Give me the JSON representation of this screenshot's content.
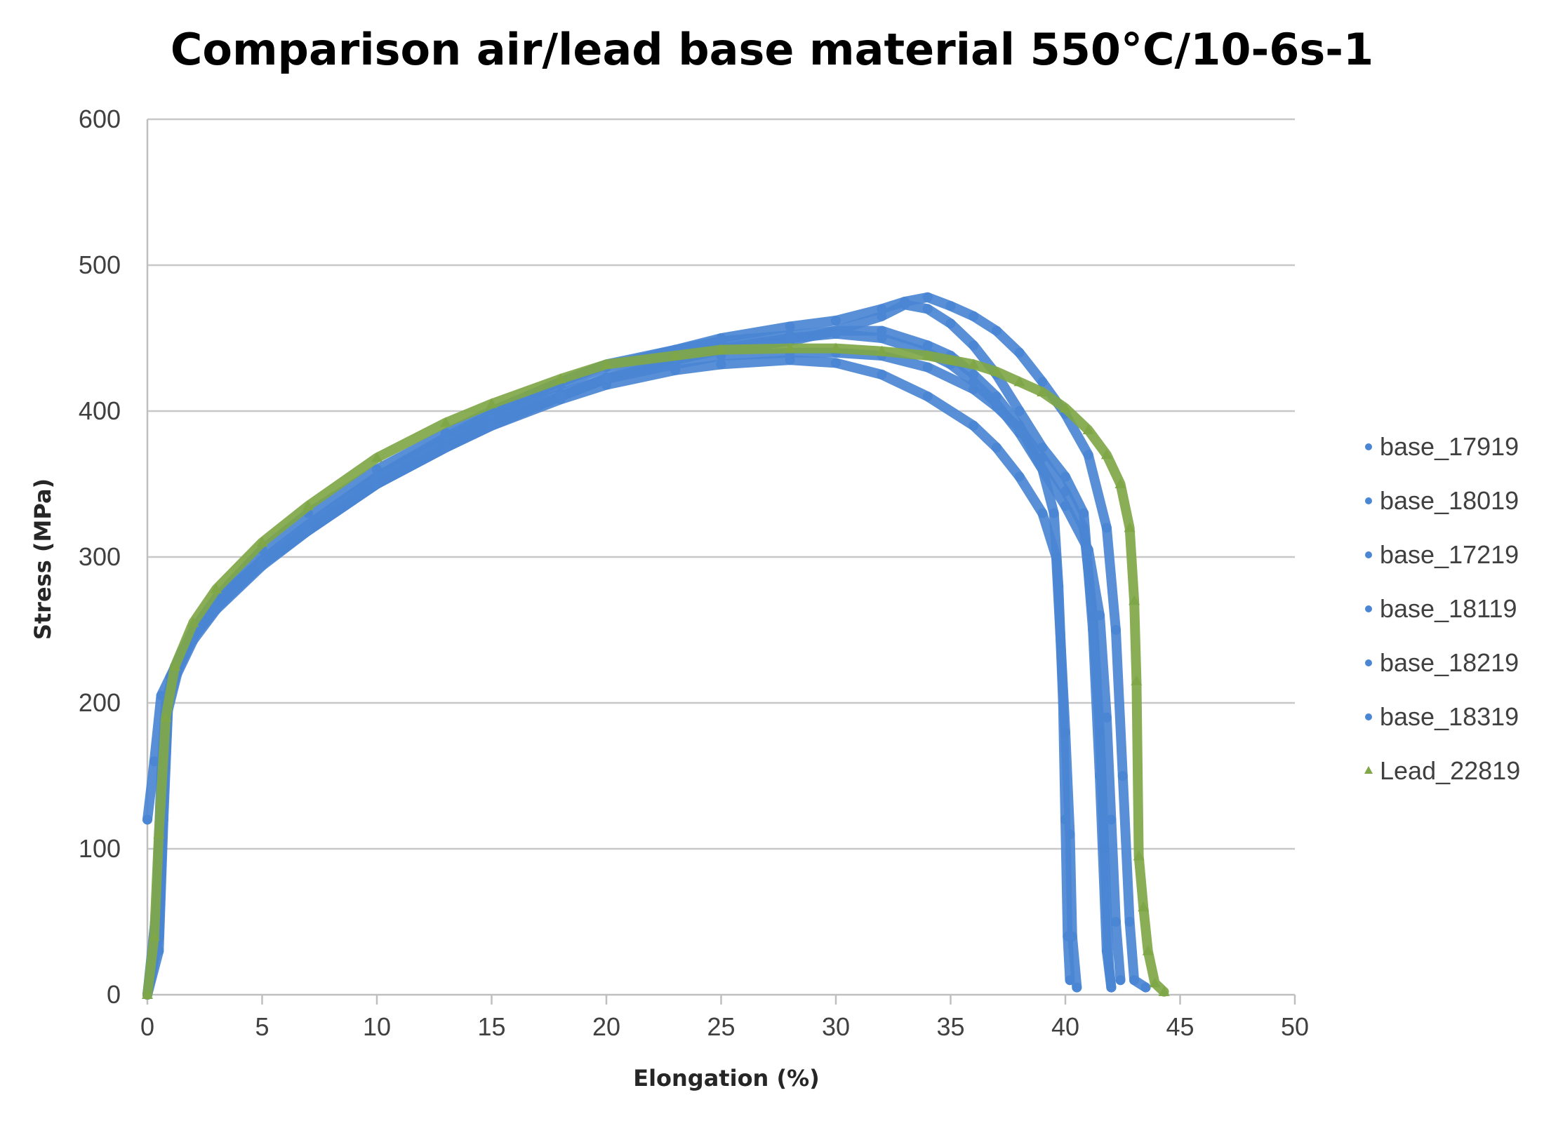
{
  "chart_data": {
    "type": "scatter",
    "title": "Comparison air/lead base material 550°C/10-6s-1",
    "xlabel": "Elongation (%)",
    "ylabel": "Stress (MPa)",
    "xlim": [
      0,
      50
    ],
    "ylim": [
      0,
      600
    ],
    "x_ticks": [
      0,
      5,
      10,
      15,
      20,
      25,
      30,
      35,
      40,
      45,
      50
    ],
    "y_ticks": [
      0,
      100,
      200,
      300,
      400,
      500,
      600
    ],
    "grid": true,
    "legend_position": "right",
    "series": [
      {
        "name": "base_17919",
        "color": "#4a86d4",
        "marker": "circle",
        "points": [
          [
            0,
            0
          ],
          [
            0.4,
            60
          ],
          [
            0.6,
            150
          ],
          [
            0.8,
            200
          ],
          [
            1.2,
            225
          ],
          [
            2,
            248
          ],
          [
            3,
            268
          ],
          [
            4,
            283
          ],
          [
            5,
            296
          ],
          [
            7,
            318
          ],
          [
            10,
            350
          ],
          [
            13,
            375
          ],
          [
            15,
            390
          ],
          [
            18,
            408
          ],
          [
            20,
            418
          ],
          [
            23,
            428
          ],
          [
            25,
            432
          ],
          [
            28,
            435
          ],
          [
            30,
            433
          ],
          [
            32,
            425
          ],
          [
            34,
            410
          ],
          [
            36,
            390
          ],
          [
            37,
            375
          ],
          [
            38,
            355
          ],
          [
            39,
            330
          ],
          [
            39.6,
            300
          ],
          [
            39.8,
            240
          ],
          [
            40,
            180
          ],
          [
            40.2,
            110
          ],
          [
            40.3,
            40
          ],
          [
            40.5,
            5
          ]
        ]
      },
      {
        "name": "base_18019",
        "color": "#4a86d4",
        "marker": "circle",
        "points": [
          [
            0,
            0
          ],
          [
            0.4,
            50
          ],
          [
            0.6,
            130
          ],
          [
            0.8,
            190
          ],
          [
            1.2,
            222
          ],
          [
            2,
            250
          ],
          [
            3,
            270
          ],
          [
            5,
            298
          ],
          [
            7,
            322
          ],
          [
            10,
            355
          ],
          [
            13,
            380
          ],
          [
            15,
            395
          ],
          [
            18,
            412
          ],
          [
            20,
            422
          ],
          [
            23,
            432
          ],
          [
            25,
            438
          ],
          [
            28,
            440
          ],
          [
            30,
            440
          ],
          [
            32,
            438
          ],
          [
            34,
            430
          ],
          [
            36,
            415
          ],
          [
            37,
            403
          ],
          [
            38,
            388
          ],
          [
            39,
            368
          ],
          [
            40,
            345
          ],
          [
            40.8,
            320
          ],
          [
            41.2,
            260
          ],
          [
            41.5,
            180
          ],
          [
            41.7,
            100
          ],
          [
            41.9,
            20
          ],
          [
            42,
            5
          ]
        ]
      },
      {
        "name": "base_17219",
        "color": "#4a86d4",
        "marker": "circle",
        "points": [
          [
            0,
            120
          ],
          [
            0.3,
            160
          ],
          [
            0.6,
            205
          ],
          [
            1,
            218
          ],
          [
            1.5,
            235
          ],
          [
            2,
            250
          ],
          [
            3,
            272
          ],
          [
            5,
            305
          ],
          [
            7,
            330
          ],
          [
            10,
            360
          ],
          [
            13,
            385
          ],
          [
            15,
            400
          ],
          [
            18,
            420
          ],
          [
            20,
            432
          ],
          [
            23,
            442
          ],
          [
            25,
            448
          ],
          [
            28,
            452
          ],
          [
            30,
            455
          ],
          [
            32,
            455
          ],
          [
            34,
            445
          ],
          [
            35,
            438
          ],
          [
            36,
            425
          ],
          [
            37,
            410
          ],
          [
            38,
            390
          ],
          [
            39,
            360
          ],
          [
            39.5,
            330
          ],
          [
            39.7,
            280
          ],
          [
            39.9,
            200
          ],
          [
            40,
            120
          ],
          [
            40.1,
            40
          ],
          [
            40.2,
            10
          ]
        ]
      },
      {
        "name": "base_18119",
        "color": "#4a86d4",
        "marker": "circle",
        "points": [
          [
            0,
            0
          ],
          [
            0.5,
            40
          ],
          [
            0.7,
            130
          ],
          [
            0.9,
            200
          ],
          [
            1.3,
            225
          ],
          [
            2,
            245
          ],
          [
            3,
            265
          ],
          [
            5,
            295
          ],
          [
            7,
            318
          ],
          [
            10,
            350
          ],
          [
            13,
            375
          ],
          [
            15,
            392
          ],
          [
            18,
            410
          ],
          [
            20,
            422
          ],
          [
            23,
            435
          ],
          [
            25,
            442
          ],
          [
            28,
            448
          ],
          [
            30,
            455
          ],
          [
            32,
            465
          ],
          [
            33,
            473
          ],
          [
            34,
            470
          ],
          [
            35,
            460
          ],
          [
            36,
            445
          ],
          [
            37,
            425
          ],
          [
            38,
            400
          ],
          [
            39,
            375
          ],
          [
            40,
            355
          ],
          [
            40.8,
            330
          ],
          [
            41.2,
            250
          ],
          [
            41.5,
            150
          ],
          [
            41.8,
            30
          ],
          [
            42,
            5
          ]
        ]
      },
      {
        "name": "base_18219",
        "color": "#4a86d4",
        "marker": "circle",
        "points": [
          [
            0,
            0
          ],
          [
            0.5,
            45
          ],
          [
            0.7,
            140
          ],
          [
            0.9,
            200
          ],
          [
            1.3,
            222
          ],
          [
            2,
            245
          ],
          [
            3,
            266
          ],
          [
            5,
            297
          ],
          [
            7,
            322
          ],
          [
            10,
            355
          ],
          [
            13,
            382
          ],
          [
            15,
            398
          ],
          [
            18,
            418
          ],
          [
            20,
            430
          ],
          [
            23,
            442
          ],
          [
            25,
            450
          ],
          [
            28,
            458
          ],
          [
            30,
            462
          ],
          [
            32,
            470
          ],
          [
            33,
            475
          ],
          [
            34,
            478
          ],
          [
            35,
            472
          ],
          [
            36,
            465
          ],
          [
            37,
            455
          ],
          [
            38,
            440
          ],
          [
            39,
            420
          ],
          [
            40,
            398
          ],
          [
            41,
            370
          ],
          [
            41.8,
            320
          ],
          [
            42.2,
            250
          ],
          [
            42.5,
            150
          ],
          [
            42.8,
            50
          ],
          [
            43,
            10
          ],
          [
            43.5,
            5
          ]
        ]
      },
      {
        "name": "base_18319",
        "color": "#4a86d4",
        "marker": "circle",
        "points": [
          [
            0,
            0
          ],
          [
            0.5,
            30
          ],
          [
            0.7,
            120
          ],
          [
            0.9,
            195
          ],
          [
            1.3,
            220
          ],
          [
            2,
            243
          ],
          [
            3,
            264
          ],
          [
            5,
            294
          ],
          [
            7,
            318
          ],
          [
            10,
            350
          ],
          [
            13,
            375
          ],
          [
            15,
            390
          ],
          [
            18,
            410
          ],
          [
            20,
            423
          ],
          [
            23,
            436
          ],
          [
            25,
            443
          ],
          [
            28,
            450
          ],
          [
            30,
            453
          ],
          [
            32,
            450
          ],
          [
            34,
            440
          ],
          [
            35,
            432
          ],
          [
            36,
            420
          ],
          [
            37,
            405
          ],
          [
            38,
            385
          ],
          [
            39,
            360
          ],
          [
            40,
            335
          ],
          [
            41,
            305
          ],
          [
            41.5,
            260
          ],
          [
            41.8,
            190
          ],
          [
            42,
            120
          ],
          [
            42.2,
            50
          ],
          [
            42.4,
            10
          ]
        ]
      },
      {
        "name": "Lead_22819",
        "color": "#7fa748",
        "marker": "triangle",
        "points": [
          [
            0,
            0
          ],
          [
            0.3,
            40
          ],
          [
            0.5,
            110
          ],
          [
            0.8,
            190
          ],
          [
            1.2,
            225
          ],
          [
            2,
            255
          ],
          [
            3,
            278
          ],
          [
            5,
            310
          ],
          [
            7,
            335
          ],
          [
            10,
            368
          ],
          [
            13,
            392
          ],
          [
            15,
            405
          ],
          [
            18,
            422
          ],
          [
            20,
            432
          ],
          [
            23,
            438
          ],
          [
            25,
            442
          ],
          [
            28,
            443
          ],
          [
            30,
            443
          ],
          [
            32,
            441
          ],
          [
            34,
            438
          ],
          [
            35,
            435
          ],
          [
            36,
            432
          ],
          [
            37,
            427
          ],
          [
            38,
            420
          ],
          [
            39,
            413
          ],
          [
            40,
            402
          ],
          [
            41,
            387
          ],
          [
            41.8,
            370
          ],
          [
            42.4,
            350
          ],
          [
            42.8,
            320
          ],
          [
            43,
            270
          ],
          [
            43.1,
            215
          ],
          [
            43.2,
            95
          ],
          [
            43.4,
            60
          ],
          [
            43.6,
            30
          ],
          [
            43.9,
            8
          ],
          [
            44.3,
            2
          ]
        ]
      }
    ]
  }
}
